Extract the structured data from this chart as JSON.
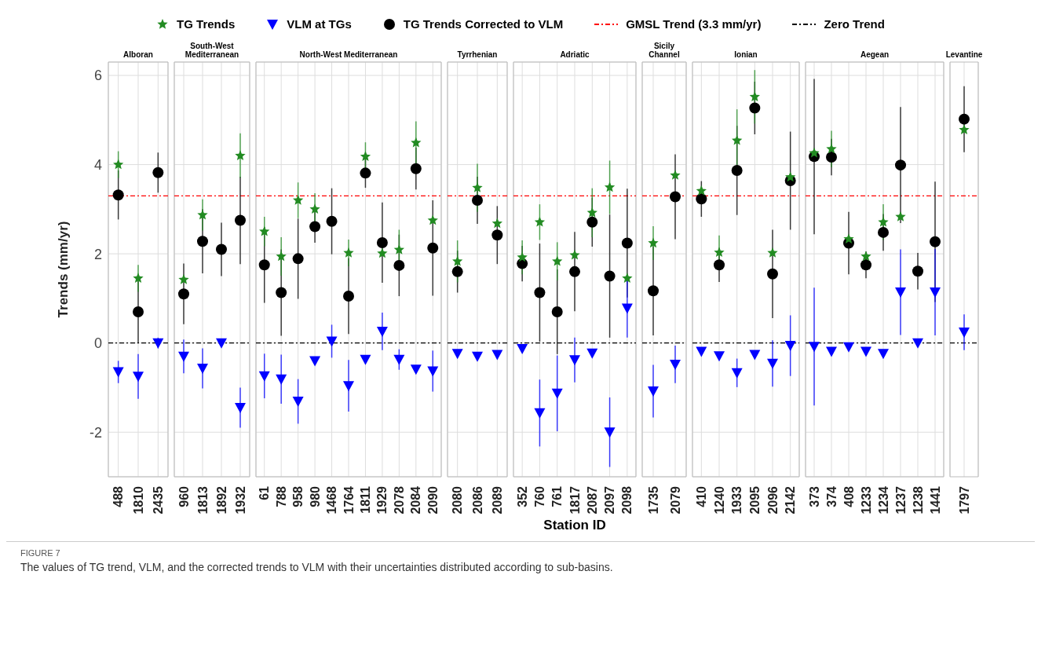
{
  "chart_data": [
    {
      "type": "scatter",
      "title": "Alboran",
      "ylabel": "Trends (mm/yr)",
      "legend": "top",
      "grid": true,
      "ylim": [
        -3,
        6.3
      ],
      "yticks": [
        -2,
        0,
        2,
        4,
        6
      ],
      "categories": [
        "488",
        "1810",
        "2435"
      ],
      "annotations": [
        "FIGURE 7",
        "The values of TG trend, VLM, and the corrected trends to VLM with their uncertainties distributed according to sub-basins."
      ],
      "series": [
        {
          "name": "TG Trends",
          "color": "#228b22",
          "marker": "star",
          "values": [
            4.0,
            1.45,
            null
          ],
          "errors": [
            0.3,
            0.3,
            null
          ]
        },
        {
          "name": "VLM at TGs",
          "color": "#0000ff",
          "marker": "triangle",
          "values": [
            -0.65,
            -0.75,
            0.0
          ],
          "errors": [
            0.25,
            0.5,
            0.12
          ]
        },
        {
          "name": "TG Trends Corrected to VLM",
          "color": "#000000",
          "marker": "circle",
          "values": [
            3.32,
            0.7,
            3.82
          ],
          "errors": [
            0.55,
            0.7,
            0.45
          ]
        }
      ],
      "ref_lines": [
        {
          "axis": "y",
          "value": 3.3,
          "label": "GMSL Trend (3.3 mm/yr)",
          "color": "#ff0000",
          "line_style": "dashed"
        },
        {
          "axis": "y",
          "value": 0,
          "label": "Zero Trend",
          "color": "#000000",
          "line_style": "dashed"
        }
      ]
    },
    {
      "type": "scatter",
      "title": "South-West Mediterranean",
      "grid": true,
      "tick_labels": "x",
      "ylim": [
        -3,
        6.3
      ],
      "yticks": [
        -2,
        0,
        2,
        4,
        6
      ],
      "categories": [
        "960",
        "1813",
        "1892",
        "1932"
      ],
      "series": [
        {
          "color": "#228b22",
          "marker": "star",
          "values": [
            1.42,
            2.87,
            null,
            4.2
          ],
          "errors": [
            null,
            0.35,
            null,
            0.5
          ]
        },
        {
          "color": "#0000ff",
          "marker": "triangle",
          "values": [
            -0.3,
            -0.57,
            0.0,
            -1.45
          ],
          "errors": [
            0.38,
            0.45,
            null,
            0.45
          ]
        },
        {
          "color": "#000000",
          "marker": "circle",
          "values": [
            1.1,
            2.28,
            2.1,
            2.75
          ],
          "errors": [
            0.68,
            0.72,
            0.6,
            0.98
          ]
        }
      ],
      "ref_lines": [
        {
          "axis": "y",
          "value": 3.3,
          "color": "#ff0000",
          "line_style": "dashed"
        },
        {
          "axis": "y",
          "value": 0,
          "color": "#000000",
          "line_style": "dashed"
        }
      ]
    },
    {
      "type": "scatter",
      "title": "North-West Mediterranean",
      "grid": true,
      "tick_labels": "x",
      "ylim": [
        -3,
        6.3
      ],
      "yticks": [
        -2,
        0,
        2,
        4,
        6
      ],
      "categories": [
        "61",
        "788",
        "958",
        "980",
        "1468",
        "1764",
        "1811",
        "1929",
        "2078",
        "2084",
        "2090"
      ],
      "series": [
        {
          "color": "#228b22",
          "marker": "star",
          "values": [
            2.5,
            1.94,
            3.2,
            3.0,
            null,
            2.02,
            4.18,
            2.01,
            2.09,
            4.49,
            2.75
          ],
          "errors": [
            0.33,
            0.43,
            0.4,
            0.36,
            null,
            0.3,
            0.32,
            null,
            0.45,
            0.48,
            null
          ]
        },
        {
          "color": "#0000ff",
          "marker": "triangle",
          "values": [
            -0.74,
            -0.81,
            -1.31,
            -0.4,
            0.04,
            -0.96,
            -0.37,
            0.26,
            -0.37,
            -0.59,
            -0.63
          ],
          "errors": [
            0.5,
            0.55,
            0.5,
            null,
            0.37,
            0.58,
            null,
            0.42,
            0.23,
            null,
            0.46
          ]
        },
        {
          "color": "#000000",
          "marker": "circle",
          "values": [
            1.75,
            1.13,
            1.89,
            2.61,
            2.73,
            1.05,
            3.81,
            2.25,
            1.74,
            3.91,
            2.13
          ],
          "errors": [
            0.85,
            0.97,
            0.9,
            0.36,
            0.74,
            0.85,
            0.33,
            0.9,
            0.69,
            0.47,
            1.07
          ]
        }
      ],
      "ref_lines": [
        {
          "axis": "y",
          "value": 3.3,
          "color": "#ff0000",
          "line_style": "dashed"
        },
        {
          "axis": "y",
          "value": 0,
          "color": "#000000",
          "line_style": "dashed"
        }
      ]
    },
    {
      "type": "scatter",
      "title": "Tyrrhenian",
      "grid": true,
      "tick_labels": "x",
      "ylim": [
        -3,
        6.3
      ],
      "yticks": [
        -2,
        0,
        2,
        4,
        6
      ],
      "categories": [
        "2080",
        "2086",
        "2089"
      ],
      "series": [
        {
          "color": "#228b22",
          "marker": "star",
          "values": [
            1.83,
            3.48,
            2.68
          ],
          "errors": [
            0.47,
            0.54,
            null
          ]
        },
        {
          "color": "#0000ff",
          "marker": "triangle",
          "values": [
            -0.24,
            -0.3,
            -0.26
          ],
          "errors": [
            null,
            null,
            null
          ]
        },
        {
          "color": "#000000",
          "marker": "circle",
          "values": [
            1.6,
            3.2,
            2.42
          ],
          "errors": [
            0.47,
            0.53,
            0.65
          ]
        }
      ],
      "ref_lines": [
        {
          "axis": "y",
          "value": 3.3,
          "color": "#ff0000",
          "line_style": "dashed"
        },
        {
          "axis": "y",
          "value": 0,
          "color": "#000000",
          "line_style": "dashed"
        }
      ]
    },
    {
      "type": "scatter",
      "title": "Adriatic",
      "xlabel": "Station ID",
      "grid": true,
      "tick_labels": "x",
      "ylim": [
        -3,
        6.3
      ],
      "yticks": [
        -2,
        0,
        2,
        4,
        6
      ],
      "categories": [
        "352",
        "760",
        "761",
        "1817",
        "2087",
        "2097",
        "2098"
      ],
      "series": [
        {
          "color": "#228b22",
          "marker": "star",
          "values": [
            1.92,
            2.71,
            1.83,
            1.97,
            2.92,
            3.49,
            1.45
          ],
          "errors": [
            0.38,
            0.4,
            0.43,
            null,
            0.55,
            0.6,
            null
          ]
        },
        {
          "color": "#0000ff",
          "marker": "triangle",
          "values": [
            -0.13,
            -1.57,
            -1.13,
            -0.38,
            -0.23,
            -2.0,
            0.78
          ],
          "errors": [
            null,
            0.75,
            0.85,
            0.5,
            null,
            0.78,
            0.66
          ]
        },
        {
          "color": "#000000",
          "marker": "circle",
          "values": [
            1.78,
            1.13,
            0.7,
            1.6,
            2.71,
            1.5,
            2.24
          ],
          "errors": [
            0.4,
            1.1,
            0.95,
            0.89,
            0.55,
            1.38,
            1.22
          ]
        }
      ],
      "ref_lines": [
        {
          "axis": "y",
          "value": 3.3,
          "color": "#ff0000",
          "line_style": "dashed"
        },
        {
          "axis": "y",
          "value": 0,
          "color": "#000000",
          "line_style": "dashed"
        }
      ]
    },
    {
      "type": "scatter",
      "title": "Sicily Channel",
      "grid": true,
      "tick_labels": "x",
      "ylim": [
        -3,
        6.3
      ],
      "yticks": [
        -2,
        0,
        2,
        4,
        6
      ],
      "categories": [
        "1735",
        "2079"
      ],
      "series": [
        {
          "color": "#228b22",
          "marker": "star",
          "values": [
            2.24,
            3.76
          ],
          "errors": [
            0.38,
            null
          ]
        },
        {
          "color": "#0000ff",
          "marker": "triangle",
          "values": [
            -1.08,
            -0.48
          ],
          "errors": [
            0.59,
            0.42
          ]
        },
        {
          "color": "#000000",
          "marker": "circle",
          "values": [
            1.17,
            3.28
          ],
          "errors": [
            1.0,
            0.95
          ]
        }
      ],
      "ref_lines": [
        {
          "axis": "y",
          "value": 3.3,
          "color": "#ff0000",
          "line_style": "dashed"
        },
        {
          "axis": "y",
          "value": 0,
          "color": "#000000",
          "line_style": "dashed"
        }
      ]
    },
    {
      "type": "scatter",
      "title": "Ionian",
      "grid": true,
      "tick_labels": "x",
      "ylim": [
        -3,
        6.3
      ],
      "yticks": [
        -2,
        0,
        2,
        4,
        6
      ],
      "categories": [
        "410",
        "1240",
        "1933",
        "2095",
        "2096",
        "2142"
      ],
      "series": [
        {
          "color": "#228b22",
          "marker": "star",
          "values": [
            3.41,
            2.03,
            4.54,
            5.52,
            2.02,
            3.72
          ],
          "errors": [
            null,
            0.38,
            0.7,
            0.6,
            null,
            null
          ]
        },
        {
          "color": "#0000ff",
          "marker": "triangle",
          "values": [
            -0.19,
            -0.29,
            -0.67,
            -0.26,
            -0.46,
            -0.06
          ],
          "errors": [
            null,
            null,
            0.32,
            null,
            0.52,
            0.68
          ]
        },
        {
          "color": "#000000",
          "marker": "circle",
          "values": [
            3.23,
            1.75,
            3.87,
            5.27,
            1.55,
            3.64
          ],
          "errors": [
            0.4,
            0.38,
            1.0,
            0.59,
            0.99,
            1.1
          ]
        }
      ],
      "ref_lines": [
        {
          "axis": "y",
          "value": 3.3,
          "color": "#ff0000",
          "line_style": "dashed"
        },
        {
          "axis": "y",
          "value": 0,
          "color": "#000000",
          "line_style": "dashed"
        }
      ]
    },
    {
      "type": "scatter",
      "title": "Aegean",
      "grid": true,
      "tick_labels": "x",
      "ylim": [
        -3,
        6.3
      ],
      "yticks": [
        -2,
        0,
        2,
        4,
        6
      ],
      "categories": [
        "373",
        "374",
        "408",
        "1233",
        "1234",
        "1237",
        "1238",
        "1441"
      ],
      "series": [
        {
          "color": "#228b22",
          "marker": "star",
          "values": [
            4.26,
            4.35,
            2.33,
            1.94,
            2.71,
            2.83,
            null,
            null
          ],
          "errors": [
            null,
            0.41,
            null,
            null,
            0.4,
            null,
            null,
            null
          ]
        },
        {
          "color": "#0000ff",
          "marker": "triangle",
          "values": [
            -0.08,
            -0.19,
            -0.09,
            -0.19,
            -0.24,
            1.14,
            0.0,
            1.14
          ],
          "errors": [
            1.32,
            null,
            null,
            null,
            null,
            0.96,
            null,
            0.97
          ]
        },
        {
          "color": "#000000",
          "marker": "circle",
          "values": [
            4.18,
            4.17,
            2.24,
            1.75,
            2.48,
            3.99,
            1.61,
            2.27
          ],
          "errors": [
            1.74,
            0.41,
            0.7,
            0.3,
            0.41,
            1.3,
            0.41,
            1.35
          ]
        }
      ],
      "ref_lines": [
        {
          "axis": "y",
          "value": 3.3,
          "color": "#ff0000",
          "line_style": "dashed"
        },
        {
          "axis": "y",
          "value": 0,
          "color": "#000000",
          "line_style": "dashed"
        }
      ]
    },
    {
      "type": "scatter",
      "title": "Levantine",
      "grid": "x",
      "tick_labels": "x",
      "ylim": [
        -3,
        6.3
      ],
      "yticks": [
        -2,
        0,
        2,
        4,
        6
      ],
      "categories": [
        "1797"
      ],
      "series": [
        {
          "color": "#228b22",
          "marker": "star",
          "values": [
            4.78
          ],
          "errors": [
            null
          ]
        },
        {
          "color": "#0000ff",
          "marker": "triangle",
          "values": [
            0.24
          ],
          "errors": [
            0.4
          ]
        },
        {
          "color": "#000000",
          "marker": "circle",
          "values": [
            5.02
          ],
          "errors": [
            0.74
          ]
        }
      ],
      "ref_lines": [
        {
          "axis": "y",
          "value": 3.3,
          "color": "#ff0000",
          "line_style": "dashed"
        },
        {
          "axis": "y",
          "value": 0,
          "color": "#000000",
          "line_style": "dashed"
        }
      ]
    }
  ]
}
